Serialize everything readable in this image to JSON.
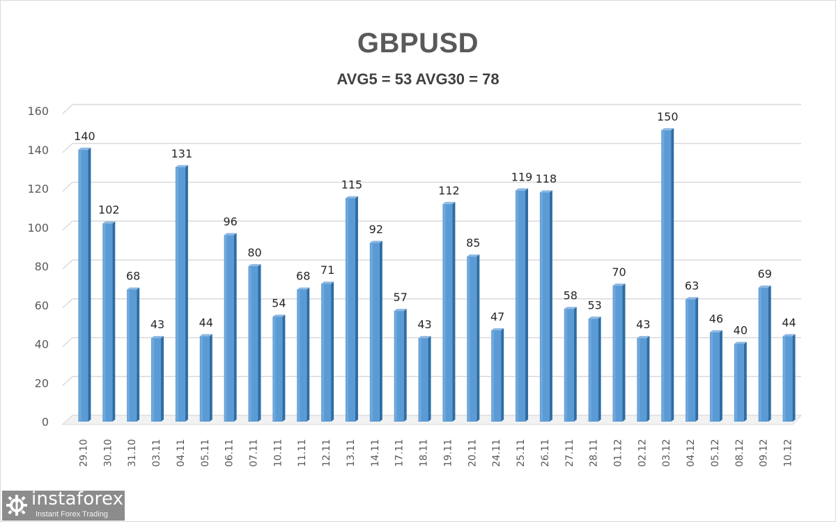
{
  "header": {
    "title": "GBPUSD",
    "subtitle": "AVG5 = 53 AVG30 = 78"
  },
  "watermark": {
    "brand": "instaforex",
    "tagline": "Instant Forex Trading",
    "icon": "gear-icon"
  },
  "colors": {
    "bar_front": "#5b9bd5",
    "bar_side": "#2e6da4",
    "bar_top": "#8db8e2",
    "grid": "#d9d9d9"
  },
  "chart_data": {
    "type": "bar",
    "title": "GBPUSD",
    "subtitle": "AVG5 = 53 AVG30 = 78",
    "xlabel": "",
    "ylabel": "",
    "ylim": [
      0,
      160
    ],
    "yticks": [
      0,
      20,
      40,
      60,
      80,
      100,
      120,
      140,
      160
    ],
    "grid": true,
    "legend": null,
    "data_labels": true,
    "style": "3d-column",
    "categories": [
      "29.10",
      "30.10",
      "31.10",
      "03.11",
      "04.11",
      "05.11",
      "06.11",
      "07.11",
      "10.11",
      "11.11",
      "12.11",
      "13.11",
      "14.11",
      "17.11",
      "18.11",
      "19.11",
      "20.11",
      "24.11",
      "25.11",
      "26.11",
      "27.11",
      "28.11",
      "01.12",
      "02.12",
      "03.12",
      "04.12",
      "05.12",
      "08.12",
      "09.12",
      "10.12"
    ],
    "values": [
      140,
      102,
      68,
      43,
      131,
      44,
      96,
      80,
      54,
      68,
      71,
      115,
      92,
      57,
      43,
      112,
      85,
      47,
      119,
      118,
      58,
      53,
      70,
      43,
      150,
      63,
      46,
      40,
      69,
      44
    ]
  }
}
